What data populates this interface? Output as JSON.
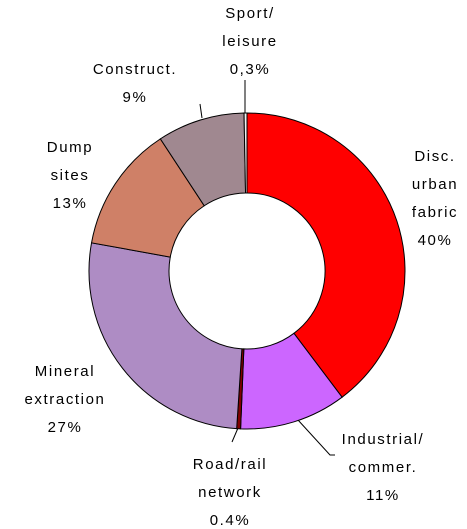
{
  "chart_data": {
    "type": "donut",
    "categories": [
      "Disc.\nurban\nfabric",
      "Industrial/\ncommer.",
      "Road/rail\nnetwork",
      "Mineral\nextraction",
      "Dump\nsites",
      "Construct.",
      "Sport/\nleisure"
    ],
    "values": [
      40,
      11,
      0.4,
      27,
      13,
      9,
      0.3
    ],
    "value_labels": [
      "40%",
      "11%",
      "0.4%",
      "27%",
      "13%",
      "9%",
      "0,3%"
    ],
    "colors": [
      "#ff0000",
      "#cc66ff",
      "#800000",
      "#ae8cc4",
      "#cf8067",
      "#a08890",
      "#f2f2f2"
    ]
  }
}
